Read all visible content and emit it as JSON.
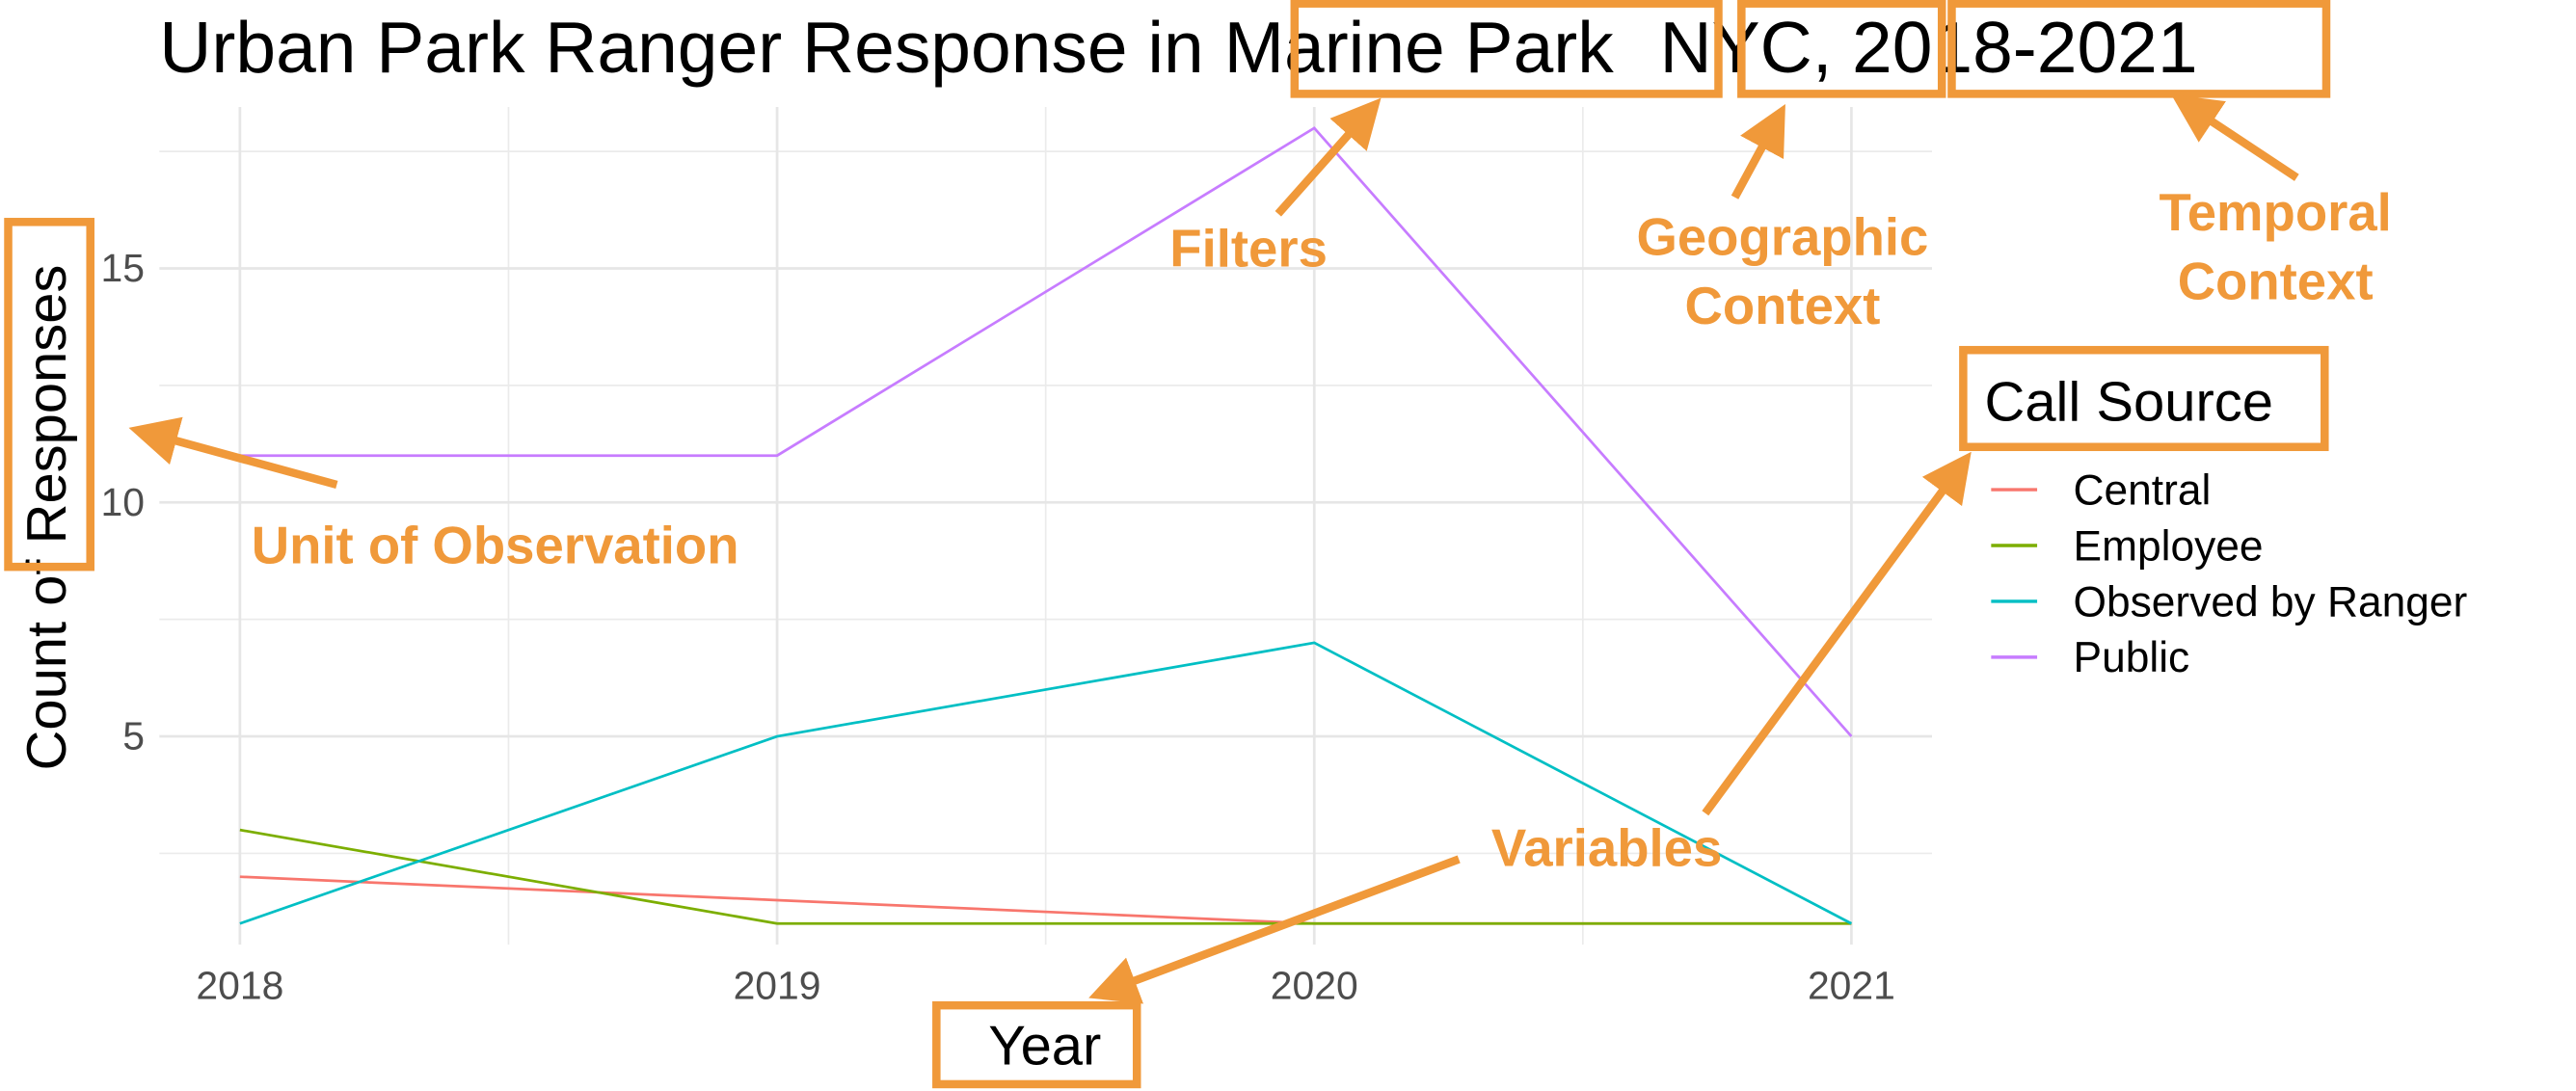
{
  "chart_data": {
    "type": "line",
    "title": {
      "prefix": "Urban Park Ranger Response in ",
      "park": "Marine Park",
      "city": "NYC,",
      "years": "2018-2021"
    },
    "xlabel": "Year",
    "ylabel": {
      "prefix": "Count of ",
      "highlight": "Responses"
    },
    "x": [
      2018,
      2019,
      2020,
      2021
    ],
    "x_tick_labels": [
      "2018",
      "2019",
      "2020",
      "2021"
    ],
    "y_ticks": [
      5,
      10,
      15
    ],
    "y_tick_labels": [
      "5",
      "10",
      "15"
    ],
    "xlim": [
      2017.85,
      2021.15
    ],
    "ylim": [
      0.55,
      18.45
    ],
    "grid": true,
    "legend": {
      "title": "Call Source",
      "placement": "right"
    },
    "series": [
      {
        "name": "Central",
        "color": "#F8766D",
        "values": [
          2,
          1.5,
          1,
          1
        ]
      },
      {
        "name": "Employee",
        "color": "#7CAE00",
        "values": [
          3,
          1,
          1,
          1
        ]
      },
      {
        "name": "Observed by Ranger",
        "color": "#00BFC4",
        "values": [
          1,
          5,
          7,
          1
        ]
      },
      {
        "name": "Public",
        "color": "#C77CFF",
        "values": [
          11,
          11,
          18,
          5
        ]
      }
    ]
  },
  "annotations": {
    "color": "#F0993A",
    "filters": "Filters",
    "geographic_1": "Geographic",
    "geographic_2": "Context",
    "temporal_1": "Temporal",
    "temporal_2": "Context",
    "unit": "Unit of Observation",
    "variables": "Variables"
  }
}
